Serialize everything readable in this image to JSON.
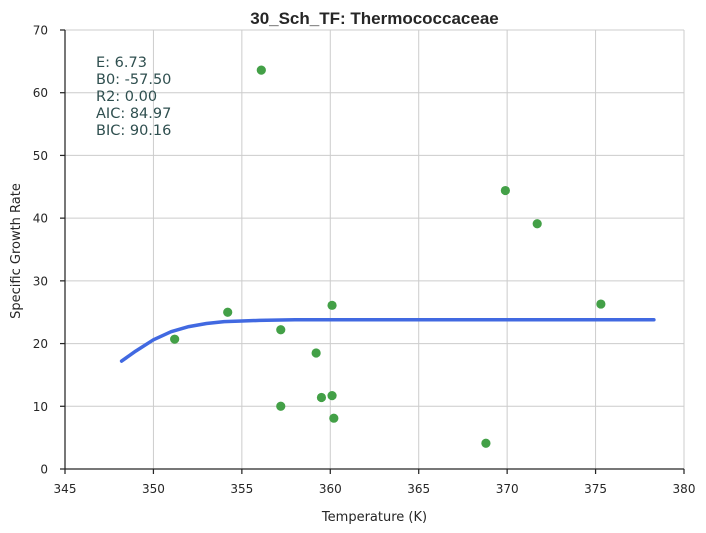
{
  "chart_data": {
    "type": "scatter",
    "title": "30_Sch_TF: Thermococcaceae",
    "xlabel": "Temperature (K)",
    "ylabel": "Specific Growth Rate",
    "xlim": [
      345,
      380
    ],
    "ylim": [
      0,
      70
    ],
    "xticks": [
      "345",
      "350",
      "355",
      "360",
      "365",
      "370",
      "375",
      "380"
    ],
    "yticks": [
      "0",
      "10",
      "20",
      "30",
      "40",
      "50",
      "60",
      "70"
    ],
    "grid": true,
    "stats": [
      "E:  6.73",
      "B0:  -57.50",
      "R2:  0.00",
      "AIC: 84.97",
      "BIC: 90.16"
    ],
    "points": {
      "color": "#43a047",
      "x": [
        351.2,
        354.2,
        356.1,
        357.2,
        357.2,
        359.2,
        359.5,
        360.1,
        360.1,
        360.2,
        368.8,
        369.9,
        371.7,
        375.3
      ],
      "y": [
        20.7,
        25.0,
        63.6,
        22.2,
        10.0,
        18.5,
        11.4,
        11.7,
        26.1,
        8.1,
        4.1,
        44.4,
        39.1,
        26.3
      ]
    },
    "fit_curve": {
      "color": "#4169e1",
      "x": [
        348.2,
        349.0,
        350.0,
        351.0,
        352.0,
        353.0,
        354.0,
        355.0,
        356.0,
        358.0,
        360.0,
        365.0,
        370.0,
        375.0,
        378.3
      ],
      "y": [
        17.2,
        18.8,
        20.6,
        21.9,
        22.7,
        23.2,
        23.5,
        23.6,
        23.7,
        23.8,
        23.8,
        23.8,
        23.8,
        23.8,
        23.8
      ]
    }
  }
}
